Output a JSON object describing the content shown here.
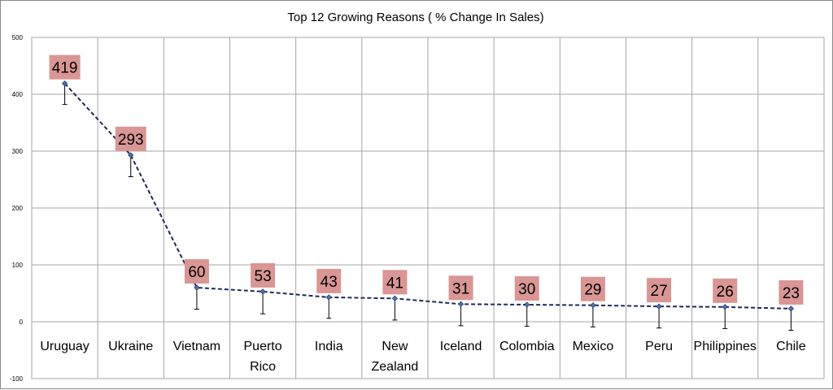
{
  "chart_data": {
    "type": "line",
    "title": "Top 12 Growing Reasons ( % Change In Sales)",
    "xlabel": "",
    "ylabel": "",
    "ylim": [
      -100,
      500
    ],
    "yticks": [
      "500",
      "400",
      "300",
      "200",
      "100",
      "0",
      "-100"
    ],
    "categories": [
      "Uruguay",
      "Ukraine",
      "Vietnam",
      "Puerto Rico",
      "India",
      "New Zealand",
      "Iceland",
      "Colombia",
      "Mexico",
      "Peru",
      "Philippines",
      "Chile"
    ],
    "category_lines": [
      [
        "Uruguay"
      ],
      [
        "Ukraine"
      ],
      [
        "Vietnam"
      ],
      [
        "Puerto",
        "Rico"
      ],
      [
        "India"
      ],
      [
        "New",
        "Zealand"
      ],
      [
        "Iceland"
      ],
      [
        "Colombia"
      ],
      [
        "Mexico"
      ],
      [
        "Peru"
      ],
      [
        "Philippines"
      ],
      [
        "Chile"
      ]
    ],
    "values": [
      419,
      293,
      60,
      53,
      43,
      41,
      31,
      30,
      29,
      27,
      26,
      23
    ],
    "data_labels": [
      "419",
      "293",
      "60",
      "53",
      "43",
      "41",
      "31",
      "30",
      "29",
      "27",
      "26",
      "23"
    ],
    "error_low": [
      382,
      255,
      22,
      14,
      6,
      3,
      -7,
      -8,
      -9,
      -11,
      -12,
      -15
    ],
    "error_high": [
      419,
      293,
      60,
      53,
      43,
      41,
      31,
      30,
      29,
      27,
      26,
      23
    ],
    "grid": true,
    "legend": "none",
    "colors": {
      "line": "#1f2a5a",
      "marker": "#4a72b0",
      "label_bg": "#d99694",
      "grid": "#a6a6a6",
      "error": "#000000"
    }
  }
}
